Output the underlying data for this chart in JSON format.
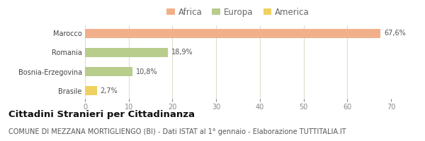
{
  "categories": [
    "Marocco",
    "Romania",
    "Bosnia-Erzegovina",
    "Brasile"
  ],
  "values": [
    67.6,
    18.9,
    10.8,
    2.7
  ],
  "labels": [
    "67,6%",
    "18,9%",
    "10,8%",
    "2,7%"
  ],
  "bar_colors": [
    "#f2b08a",
    "#b8cc8c",
    "#b8cc8c",
    "#f0d060"
  ],
  "legend": [
    {
      "label": "Africa",
      "color": "#f2b08a"
    },
    {
      "label": "Europa",
      "color": "#b8cc8c"
    },
    {
      "label": "America",
      "color": "#f0d060"
    }
  ],
  "xlim": [
    0,
    70
  ],
  "xticks": [
    0,
    10,
    20,
    30,
    40,
    50,
    60,
    70
  ],
  "title_bold": "Cittadini Stranieri per Cittadinanza",
  "subtitle": "COMUNE DI MEZZANA MORTIGLIENGO (BI) - Dati ISTAT al 1° gennaio - Elaborazione TUTTITALIA.IT",
  "background_color": "#ffffff",
  "grid_color": "#ddddcc",
  "bar_height": 0.5,
  "label_fontsize": 7.0,
  "axis_fontsize": 7.0,
  "legend_fontsize": 8.5,
  "title_fontsize": 9.5,
  "subtitle_fontsize": 7.0
}
